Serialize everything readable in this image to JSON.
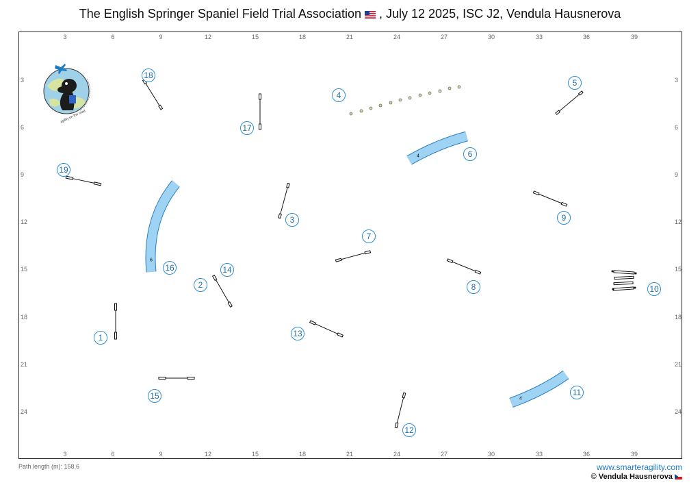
{
  "header": {
    "title_part1": "The English Springer Spaniel Field Trial Association",
    "title_part2": ", July 12 2025, ISC J2, Vendula Hausnerova",
    "flag_icon": "us-flag-icon"
  },
  "axis": {
    "x_ticks": [
      "3",
      "6",
      "9",
      "12",
      "15",
      "18",
      "21",
      "24",
      "27",
      "30",
      "33",
      "36",
      "39"
    ],
    "y_ticks": [
      "3",
      "6",
      "9",
      "12",
      "15",
      "18",
      "21",
      "24"
    ]
  },
  "logo": {
    "text": "agility on the road",
    "icon": "dog-logo-icon"
  },
  "obstacles": {
    "tunnel_6_label": "4",
    "tunnel_16_label": "6",
    "tunnel_11_label": "4"
  },
  "numbers": [
    {
      "n": "1"
    },
    {
      "n": "2"
    },
    {
      "n": "3"
    },
    {
      "n": "4"
    },
    {
      "n": "5"
    },
    {
      "n": "6"
    },
    {
      "n": "7"
    },
    {
      "n": "8"
    },
    {
      "n": "9"
    },
    {
      "n": "10"
    },
    {
      "n": "11"
    },
    {
      "n": "12"
    },
    {
      "n": "13"
    },
    {
      "n": "14"
    },
    {
      "n": "15"
    },
    {
      "n": "16"
    },
    {
      "n": "17"
    },
    {
      "n": "18"
    },
    {
      "n": "19"
    }
  ],
  "footer": {
    "path_length": "Path length (m): 158.6",
    "website": "www.smarteragility.com",
    "copyright": "© Vendula Hausnerova",
    "flag_icon": "czech-flag-icon"
  },
  "colors": {
    "accent": "#2a8fd6",
    "tunnel": "#9fd3f3",
    "border": "#222222"
  }
}
